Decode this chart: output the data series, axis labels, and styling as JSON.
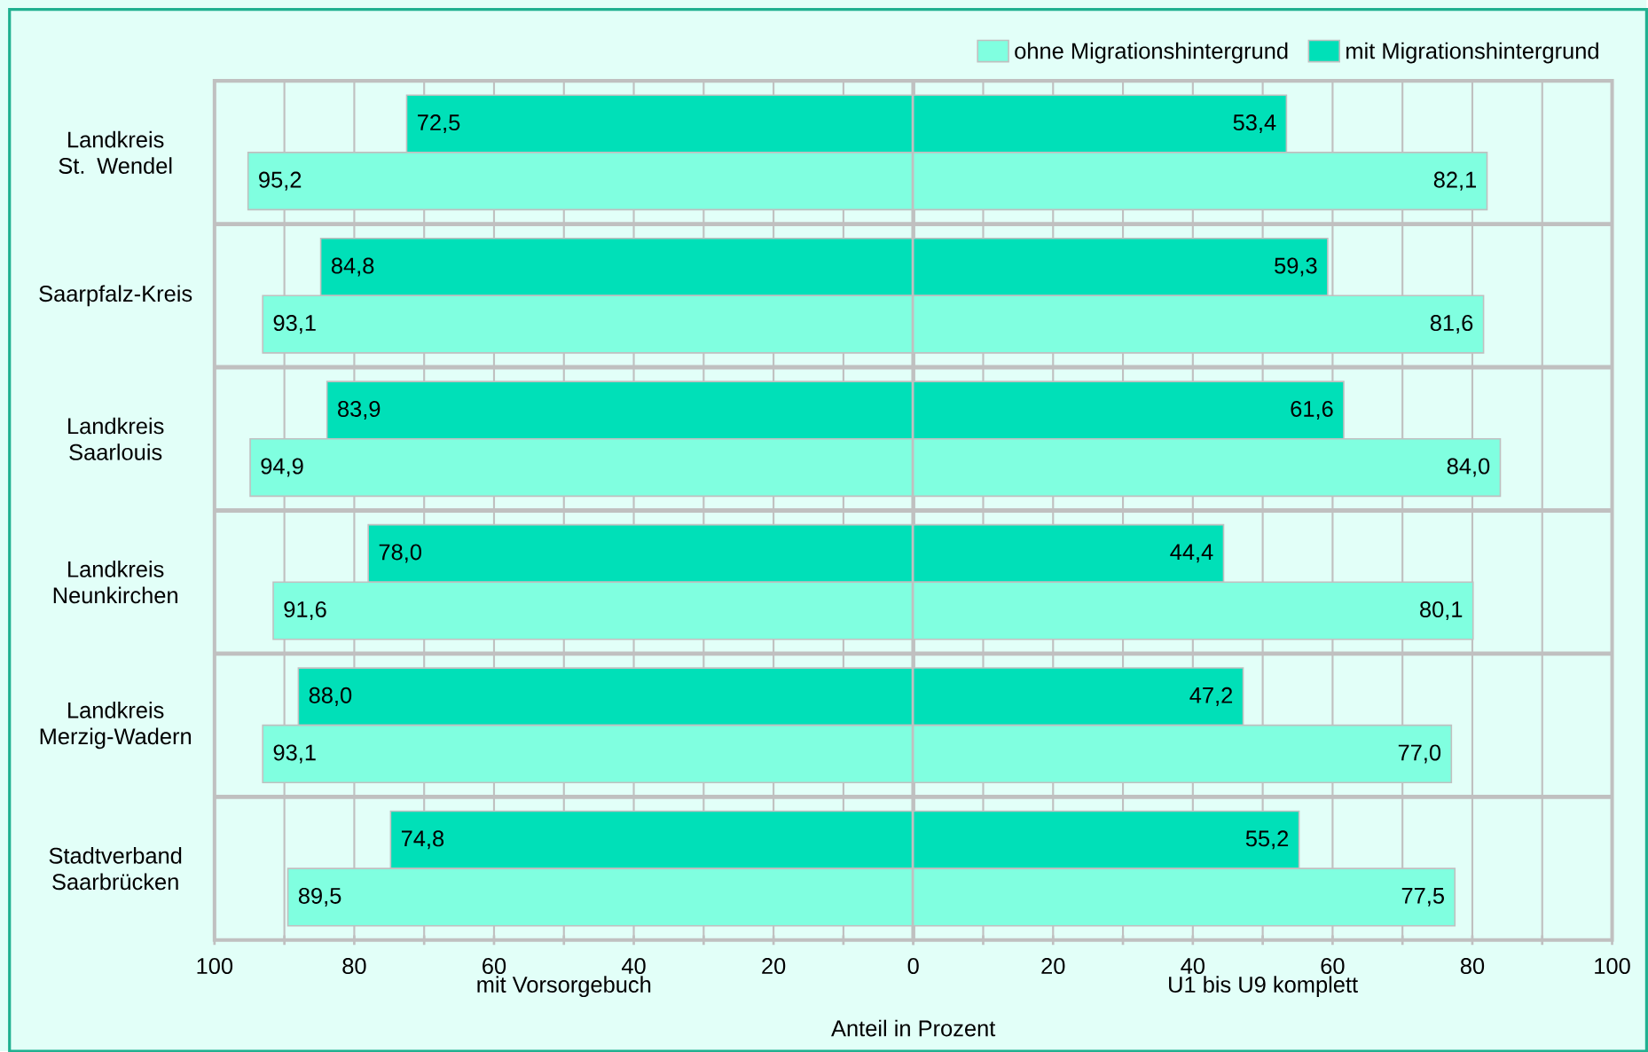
{
  "chart_data": [
    {
      "type": "bar",
      "orientation": "horizontal",
      "xlabel": "mit Vorsorgebuch",
      "annotations": [
        "Anteil in Prozent"
      ],
      "categories": [
        "Landkreis St. Wendel",
        "Saarpfalz-Kreis",
        "Landkreis Saarlouis",
        "Landkreis Neunkirchen",
        "Landkreis Merzig-Wadern",
        "Stadtverband Saarbrücken"
      ],
      "series": [
        {
          "color": "#00e0b8",
          "values": [
            72.5,
            84.8,
            83.9,
            78.0,
            88.0,
            74.8
          ],
          "value_labels": [
            "72,5",
            "84,8",
            "83,9",
            "78,0",
            "88,0",
            "74,8"
          ]
        },
        {
          "color": "#80ffe0",
          "values": [
            95.2,
            93.1,
            94.9,
            91.6,
            93.1,
            89.5
          ],
          "value_labels": [
            "95,2",
            "93,1",
            "94,9",
            "91,6",
            "93,1",
            "89,5"
          ]
        }
      ],
      "xlim": [
        100,
        0
      ],
      "xticks": [
        100,
        {
          "value": 90,
          "label": null
        },
        80,
        {
          "value": 70,
          "label": null
        },
        60,
        {
          "value": 50,
          "label": null
        },
        40,
        {
          "value": 30,
          "label": null
        },
        20,
        {
          "value": 10,
          "label": null
        },
        {
          "value": 0,
          "label": null
        }
      ],
      "grid": true,
      "legend": false
    },
    {
      "type": "bar",
      "orientation": "horizontal",
      "xlabel": "U1 bis U9 komplett",
      "categories": [
        null,
        null,
        null,
        null,
        null,
        null
      ],
      "series": [
        {
          "name": "mit Migrationshintergrund",
          "color": "#00e0b8",
          "values": [
            53.4,
            59.3,
            61.6,
            44.4,
            47.2,
            55.2
          ],
          "value_labels": [
            "53,4",
            "59,3",
            "61,6",
            "44,4",
            "47,2",
            "55,2"
          ]
        },
        {
          "name": "ohne Migrationshintergrund",
          "color": "#80ffe0",
          "values": [
            82.1,
            81.6,
            84.0,
            80.1,
            77.0,
            77.5
          ],
          "value_labels": [
            "82,1",
            "81,6",
            "84,0",
            "80,1",
            "77,0",
            "77,5"
          ]
        }
      ],
      "xlim": [
        0,
        100
      ],
      "xticks": [
        0,
        {
          "value": 10,
          "label": null
        },
        20,
        {
          "value": 30,
          "label": null
        },
        40,
        {
          "value": 50,
          "label": null
        },
        60,
        {
          "value": 70,
          "label": null
        },
        80,
        {
          "value": 90,
          "label": null
        },
        100
      ],
      "grid": true,
      "tick_labels": "x",
      "legend": "top right"
    }
  ]
}
